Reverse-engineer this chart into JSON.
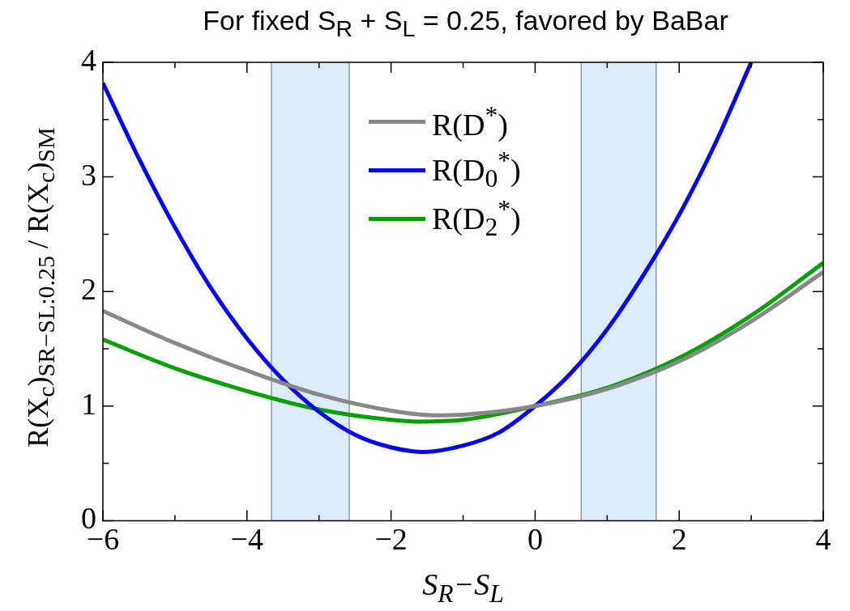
{
  "chart_data": {
    "type": "line",
    "title": "For fixed S$_{R}$ + S$_{L}$ = 0.25, favored by BaBar",
    "xlabel": "S$_{R}$−S$_{L}$",
    "ylabel": "R(X$_{c}$)$_{SR−SL:0.25}$ / R(X$_{c}$)$_{SM}$",
    "series": [
      {
        "name": "R(D$^{*}$)",
        "color": "#888888",
        "x": [
          -6,
          -5,
          -4,
          -3,
          -2,
          -1.4,
          -1,
          0,
          1,
          2,
          3,
          4
        ],
        "values": [
          1.83,
          1.55,
          1.31,
          1.1,
          0.96,
          0.92,
          0.925,
          1.0,
          1.15,
          1.39,
          1.74,
          2.17
        ]
      },
      {
        "name": "R(D$_{0}$$^{*}$)",
        "color": "#0000ff",
        "x": [
          -6,
          -5.5,
          -5,
          -4.5,
          -4,
          -3.5,
          -3,
          -2.5,
          -2,
          -1.55,
          -1,
          -0.5,
          0,
          0.5,
          1,
          1.5,
          2,
          2.5,
          3
        ],
        "values": [
          3.82,
          3.16,
          2.56,
          2.03,
          1.59,
          1.23,
          0.95,
          0.75,
          0.64,
          0.6,
          0.655,
          0.77,
          1.0,
          1.29,
          1.67,
          2.14,
          2.67,
          3.29,
          4.0
        ]
      },
      {
        "name": "R(D$_{2}$$^{*}$)",
        "color": "#00a000",
        "x": [
          -6,
          -5,
          -4,
          -3,
          -2,
          -1.6,
          -1,
          0,
          1,
          2,
          3,
          4
        ],
        "values": [
          1.58,
          1.33,
          1.13,
          0.97,
          0.88,
          0.865,
          0.88,
          1.0,
          1.16,
          1.42,
          1.79,
          2.25
        ]
      }
    ],
    "xlim": [
      -6,
      4
    ],
    "ylim": [
      0,
      4
    ],
    "xticks": [
      -6,
      {
        "value": -5,
        "label": null
      },
      -4,
      {
        "value": -3,
        "label": null
      },
      -2,
      {
        "value": -1,
        "label": null
      },
      0,
      {
        "value": 1,
        "label": null
      },
      2,
      {
        "value": 3,
        "label": null
      },
      4
    ],
    "yticks": [
      0,
      {
        "value": 0.5,
        "label": null
      },
      1,
      {
        "value": 1.5,
        "label": null
      },
      2,
      {
        "value": 2.5,
        "label": null
      },
      3,
      {
        "value": 3.5,
        "label": null
      },
      4
    ],
    "bands": [
      {
        "axis": "x",
        "from": -3.66,
        "to": -2.58,
        "color": "#dcecfb"
      },
      {
        "axis": "x",
        "from": 0.64,
        "to": 1.68,
        "color": "#dcecfb"
      }
    ],
    "grid": false,
    "legend": "top",
    "marker": "none",
    "line_style": "solid"
  }
}
